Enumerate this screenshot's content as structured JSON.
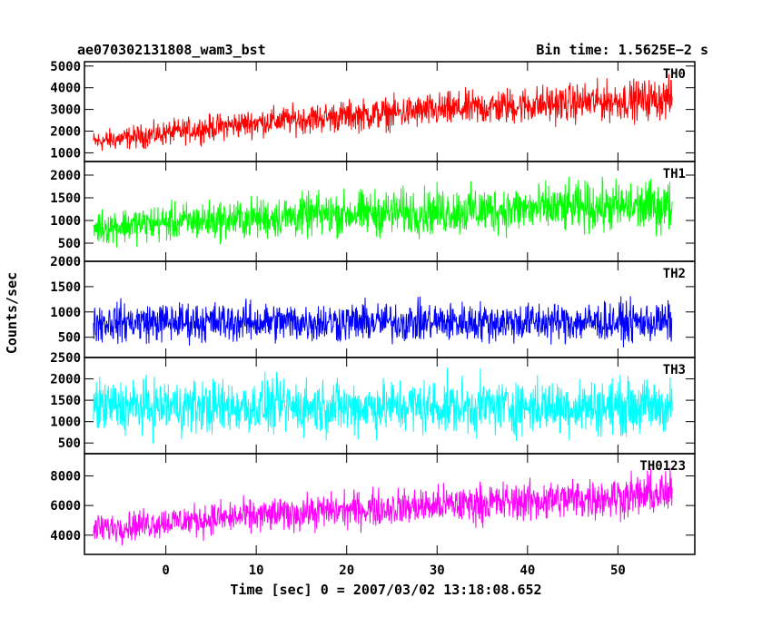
{
  "header": {
    "title": "ae070302131808_wam3_bst",
    "bin_time": "Bin time: 1.5625E−2 s"
  },
  "chart_data": {
    "type": "line",
    "title": "ae070302131808_wam3_bst",
    "subtitle": "Bin time: 1.5625E−2 s",
    "xlabel": "Time [sec] 0 = 2007/03/02 13:18:08.652",
    "ylabel": "Counts/sec",
    "xlim": [
      -9.0,
      58.5
    ],
    "x_data_range": [
      -8.0,
      56.0
    ],
    "x_ticks": [
      0,
      10,
      20,
      30,
      40,
      50
    ],
    "grid": false,
    "panels": [
      {
        "name": "TH0",
        "color": "#ff0000",
        "ylim": [
          600,
          5200
        ],
        "y_ticks": [
          1000,
          2000,
          3000,
          4000,
          5000
        ],
        "x": [
          -8,
          0,
          10,
          20,
          30,
          40,
          50,
          56
        ],
        "mid": [
          1500,
          1900,
          2400,
          2700,
          2950,
          3200,
          3400,
          3500
        ],
        "spread": [
          650,
          750,
          850,
          950,
          1050,
          1150,
          1200,
          1250
        ]
      },
      {
        "name": "TH1",
        "color": "#00ff00",
        "ylim": [
          100,
          2300
        ],
        "y_ticks": [
          500,
          1000,
          1500,
          2000
        ],
        "x": [
          -8,
          0,
          10,
          20,
          30,
          40,
          50,
          56
        ],
        "mid": [
          850,
          950,
          1050,
          1150,
          1200,
          1250,
          1300,
          1300
        ],
        "spread": [
          500,
          550,
          600,
          650,
          700,
          700,
          750,
          750
        ]
      },
      {
        "name": "TH2",
        "color": "#0000ff",
        "ylim": [
          100,
          2000
        ],
        "y_ticks": [
          500,
          1000,
          1500,
          2000
        ],
        "x": [
          -8,
          0,
          10,
          20,
          30,
          40,
          50,
          56
        ],
        "mid": [
          800,
          800,
          800,
          800,
          800,
          800,
          800,
          800
        ],
        "spread": [
          520,
          520,
          520,
          520,
          520,
          520,
          520,
          520
        ]
      },
      {
        "name": "TH3",
        "color": "#00ffff",
        "ylim": [
          250,
          2500
        ],
        "y_ticks": [
          500,
          1000,
          1500,
          2000,
          2500
        ],
        "x": [
          -8,
          0,
          10,
          20,
          30,
          40,
          50,
          56
        ],
        "mid": [
          1350,
          1350,
          1350,
          1350,
          1350,
          1350,
          1350,
          1350
        ],
        "spread": [
          850,
          850,
          850,
          850,
          850,
          850,
          850,
          850
        ]
      },
      {
        "name": "TH0123",
        "color": "#ff00ff",
        "ylim": [
          2700,
          9500
        ],
        "y_ticks": [
          4000,
          6000,
          8000
        ],
        "x": [
          -8,
          0,
          10,
          20,
          30,
          40,
          50,
          56
        ],
        "mid": [
          4400,
          4900,
          5300,
          5700,
          6000,
          6300,
          6600,
          6800
        ],
        "spread": [
          1300,
          1400,
          1500,
          1600,
          1700,
          1800,
          1900,
          2000
        ]
      }
    ]
  }
}
